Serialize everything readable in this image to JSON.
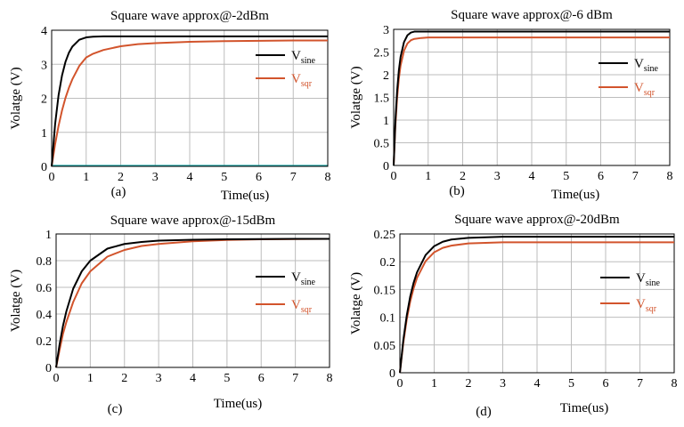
{
  "colors": {
    "sine": "#000000",
    "sqr": "#d2542c",
    "grid": "#bdbdbd",
    "baseline": "#1aa3a3"
  },
  "chart_data": [
    {
      "id": "a",
      "type": "line",
      "title": "Square wave approx@-2dBm",
      "panel_label": "(a)",
      "xlabel": "Time(us)",
      "ylabel": "Volatge (V)",
      "xlim": [
        0,
        8
      ],
      "ylim": [
        0,
        4
      ],
      "xticks": [
        0,
        1,
        2,
        3,
        4,
        5,
        6,
        7,
        8
      ],
      "yticks": [
        0,
        1,
        2,
        3,
        4
      ],
      "grid": true,
      "legend_position": "right",
      "x": [
        0,
        0.1,
        0.2,
        0.3,
        0.4,
        0.5,
        0.6,
        0.8,
        1.0,
        1.2,
        1.5,
        2,
        2.5,
        3,
        4,
        5,
        6,
        7,
        8
      ],
      "series": [
        {
          "name": "V",
          "sub": "sine",
          "color_key": "sine",
          "values": [
            0,
            1.24,
            2.09,
            2.67,
            3.07,
            3.34,
            3.52,
            3.72,
            3.79,
            3.81,
            3.82,
            3.82,
            3.82,
            3.82,
            3.82,
            3.82,
            3.82,
            3.82,
            3.82
          ]
        },
        {
          "name": "V",
          "sub": "sqr",
          "color_key": "sqr",
          "values": [
            0,
            0.65,
            1.19,
            1.64,
            2.01,
            2.31,
            2.56,
            2.95,
            3.2,
            3.31,
            3.42,
            3.53,
            3.59,
            3.62,
            3.66,
            3.68,
            3.69,
            3.7,
            3.7
          ]
        }
      ]
    },
    {
      "id": "b",
      "type": "line",
      "title": "Square wave approx@-6 dBm",
      "panel_label": "(b)",
      "xlabel": "Time(us)",
      "ylabel": "Volatge (V)",
      "xlim": [
        0,
        8
      ],
      "ylim": [
        0,
        3
      ],
      "xticks": [
        0,
        1,
        2,
        3,
        4,
        5,
        6,
        7,
        8
      ],
      "yticks": [
        0,
        0.5,
        1,
        1.5,
        2,
        2.5,
        3
      ],
      "grid": true,
      "legend_position": "right",
      "x": [
        0,
        0.05,
        0.1,
        0.15,
        0.2,
        0.3,
        0.4,
        0.5,
        0.6,
        0.8,
        1.0,
        2,
        3,
        4,
        5,
        6,
        7,
        8
      ],
      "series": [
        {
          "name": "V",
          "sub": "sine",
          "color_key": "sine",
          "values": [
            0,
            0.98,
            1.64,
            2.09,
            2.39,
            2.72,
            2.87,
            2.93,
            2.95,
            2.95,
            2.95,
            2.95,
            2.95,
            2.95,
            2.95,
            2.95,
            2.95,
            2.95
          ]
        },
        {
          "name": "V",
          "sub": "sqr",
          "color_key": "sqr",
          "values": [
            0,
            0.88,
            1.49,
            1.91,
            2.2,
            2.53,
            2.69,
            2.76,
            2.79,
            2.81,
            2.82,
            2.82,
            2.82,
            2.82,
            2.82,
            2.82,
            2.82,
            2.82
          ]
        }
      ]
    },
    {
      "id": "c",
      "type": "line",
      "title": "Square wave approx@-15dBm",
      "panel_label": "(c)",
      "xlabel": "Time(us)",
      "ylabel": "Volatge (V)",
      "xlim": [
        0,
        8
      ],
      "ylim": [
        0,
        1
      ],
      "xticks": [
        0,
        1,
        2,
        3,
        4,
        5,
        6,
        7,
        8
      ],
      "yticks": [
        0,
        0.2,
        0.4,
        0.6,
        0.8,
        1
      ],
      "grid": true,
      "legend_position": "right",
      "x": [
        0,
        0.1,
        0.2,
        0.3,
        0.5,
        0.75,
        1.0,
        1.5,
        2,
        2.5,
        3,
        4,
        5,
        6,
        7,
        8
      ],
      "series": [
        {
          "name": "V",
          "sub": "sine",
          "color_key": "sine",
          "values": [
            0,
            0.17,
            0.31,
            0.42,
            0.59,
            0.72,
            0.8,
            0.89,
            0.925,
            0.94,
            0.95,
            0.957,
            0.96,
            0.962,
            0.963,
            0.963
          ]
        },
        {
          "name": "V",
          "sub": "sqr",
          "color_key": "sqr",
          "values": [
            0,
            0.13,
            0.25,
            0.34,
            0.49,
            0.63,
            0.72,
            0.83,
            0.88,
            0.91,
            0.925,
            0.945,
            0.955,
            0.96,
            0.962,
            0.963
          ]
        }
      ]
    },
    {
      "id": "d",
      "type": "line",
      "title": "Square wave approx@-20dBm",
      "panel_label": "(d)",
      "xlabel": "Time(us)",
      "ylabel": "Volatge (V)",
      "xlim": [
        0,
        8
      ],
      "ylim": [
        0,
        0.25
      ],
      "xticks": [
        0,
        1,
        2,
        3,
        4,
        5,
        6,
        7,
        8
      ],
      "yticks": [
        0,
        0.05,
        0.1,
        0.15,
        0.2,
        0.25
      ],
      "grid": true,
      "legend_position": "right",
      "x": [
        0,
        0.1,
        0.2,
        0.3,
        0.4,
        0.5,
        0.75,
        1.0,
        1.25,
        1.5,
        2,
        2.5,
        3,
        4,
        5,
        6,
        7,
        8
      ],
      "series": [
        {
          "name": "V",
          "sub": "sine",
          "color_key": "sine",
          "values": [
            0,
            0.059,
            0.103,
            0.137,
            0.162,
            0.181,
            0.212,
            0.228,
            0.236,
            0.24,
            0.243,
            0.244,
            0.245,
            0.245,
            0.245,
            0.245,
            0.245,
            0.245
          ]
        },
        {
          "name": "V",
          "sub": "sqr",
          "color_key": "sqr",
          "values": [
            0,
            0.054,
            0.096,
            0.128,
            0.152,
            0.171,
            0.201,
            0.217,
            0.225,
            0.229,
            0.233,
            0.234,
            0.235,
            0.235,
            0.235,
            0.235,
            0.235,
            0.235
          ]
        }
      ]
    }
  ]
}
